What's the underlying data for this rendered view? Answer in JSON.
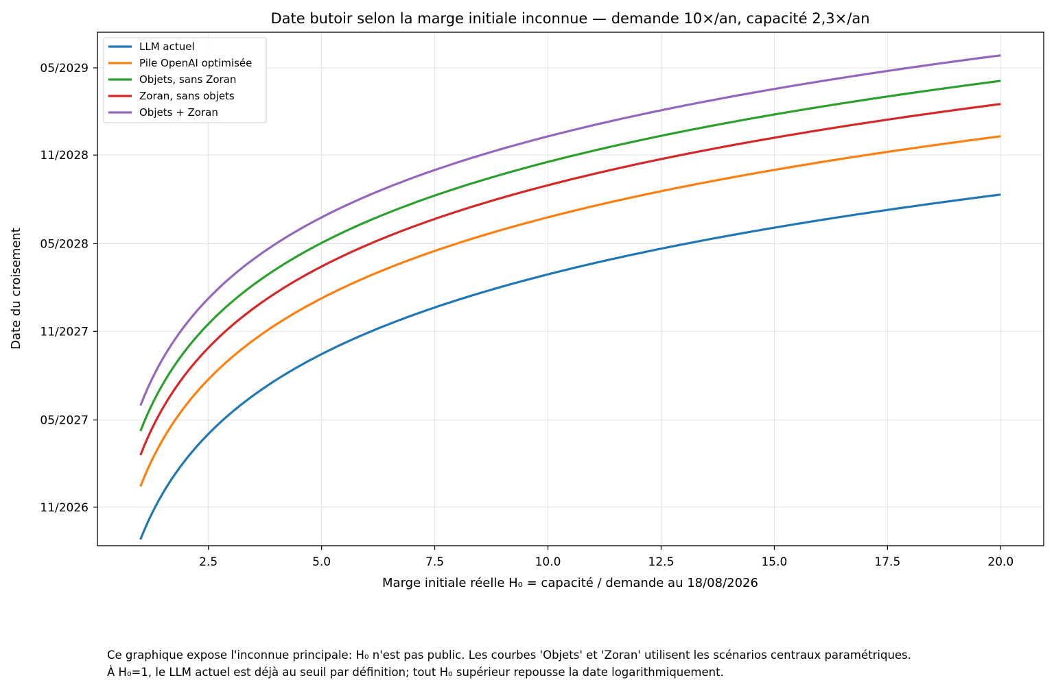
{
  "chart_data": {
    "type": "line",
    "title": "Date butoir selon la marge initiale inconnue — demande 10×/an, capacité 2,3×/an",
    "xlabel": "Marge initiale réelle H₀ = capacité / demande au 18/08/2026",
    "ylabel": "Date du croisement",
    "xlim": [
      0.05,
      20.95
    ],
    "ylim": [
      "2026-08-13",
      "2029-07-14"
    ],
    "x_ticks": [
      2.5,
      5.0,
      7.5,
      10.0,
      12.5,
      15.0,
      17.5,
      20.0
    ],
    "x_tick_labels": [
      "2.5",
      "5.0",
      "7.5",
      "10.0",
      "12.5",
      "15.0",
      "17.5",
      "20.0"
    ],
    "y_ticks": [
      "2026-11-01",
      "2027-05-01",
      "2027-11-01",
      "2028-05-01",
      "2028-11-01",
      "2029-05-01"
    ],
    "y_tick_labels": [
      "11/2026",
      "05/2027",
      "11/2027",
      "05/2028",
      "11/2028",
      "05/2029"
    ],
    "grid": true,
    "legend_position": "top-left",
    "x_range": [
      1,
      20
    ],
    "series": [
      {
        "name": "LLM actuel",
        "color": "#1f77b4",
        "start_date": "2026-08-26",
        "end_date": "2028-08-11"
      },
      {
        "name": "Pile OpenAI optimisée",
        "color": "#ff7f0e",
        "start_date": "2026-12-14",
        "end_date": "2028-12-10"
      },
      {
        "name": "Objets, sans Zoran",
        "color": "#2ca02c",
        "start_date": "2027-04-08",
        "end_date": "2029-04-04"
      },
      {
        "name": "Zoran, sans objets",
        "color": "#d62728",
        "start_date": "2027-02-17",
        "end_date": "2029-02-15"
      },
      {
        "name": "Objets + Zoran",
        "color": "#9467bd",
        "start_date": "2027-05-31",
        "end_date": "2029-05-27"
      }
    ]
  },
  "notes": [
    "Ce graphique expose l'inconnue principale: H₀ n'est pas public. Les courbes 'Objets' et 'Zoran' utilisent les scénarios centraux paramétriques.",
    "À H₀=1, le LLM actuel est déjà au seuil par définition; tout H₀ supérieur repousse la date logarithmiquement."
  ]
}
